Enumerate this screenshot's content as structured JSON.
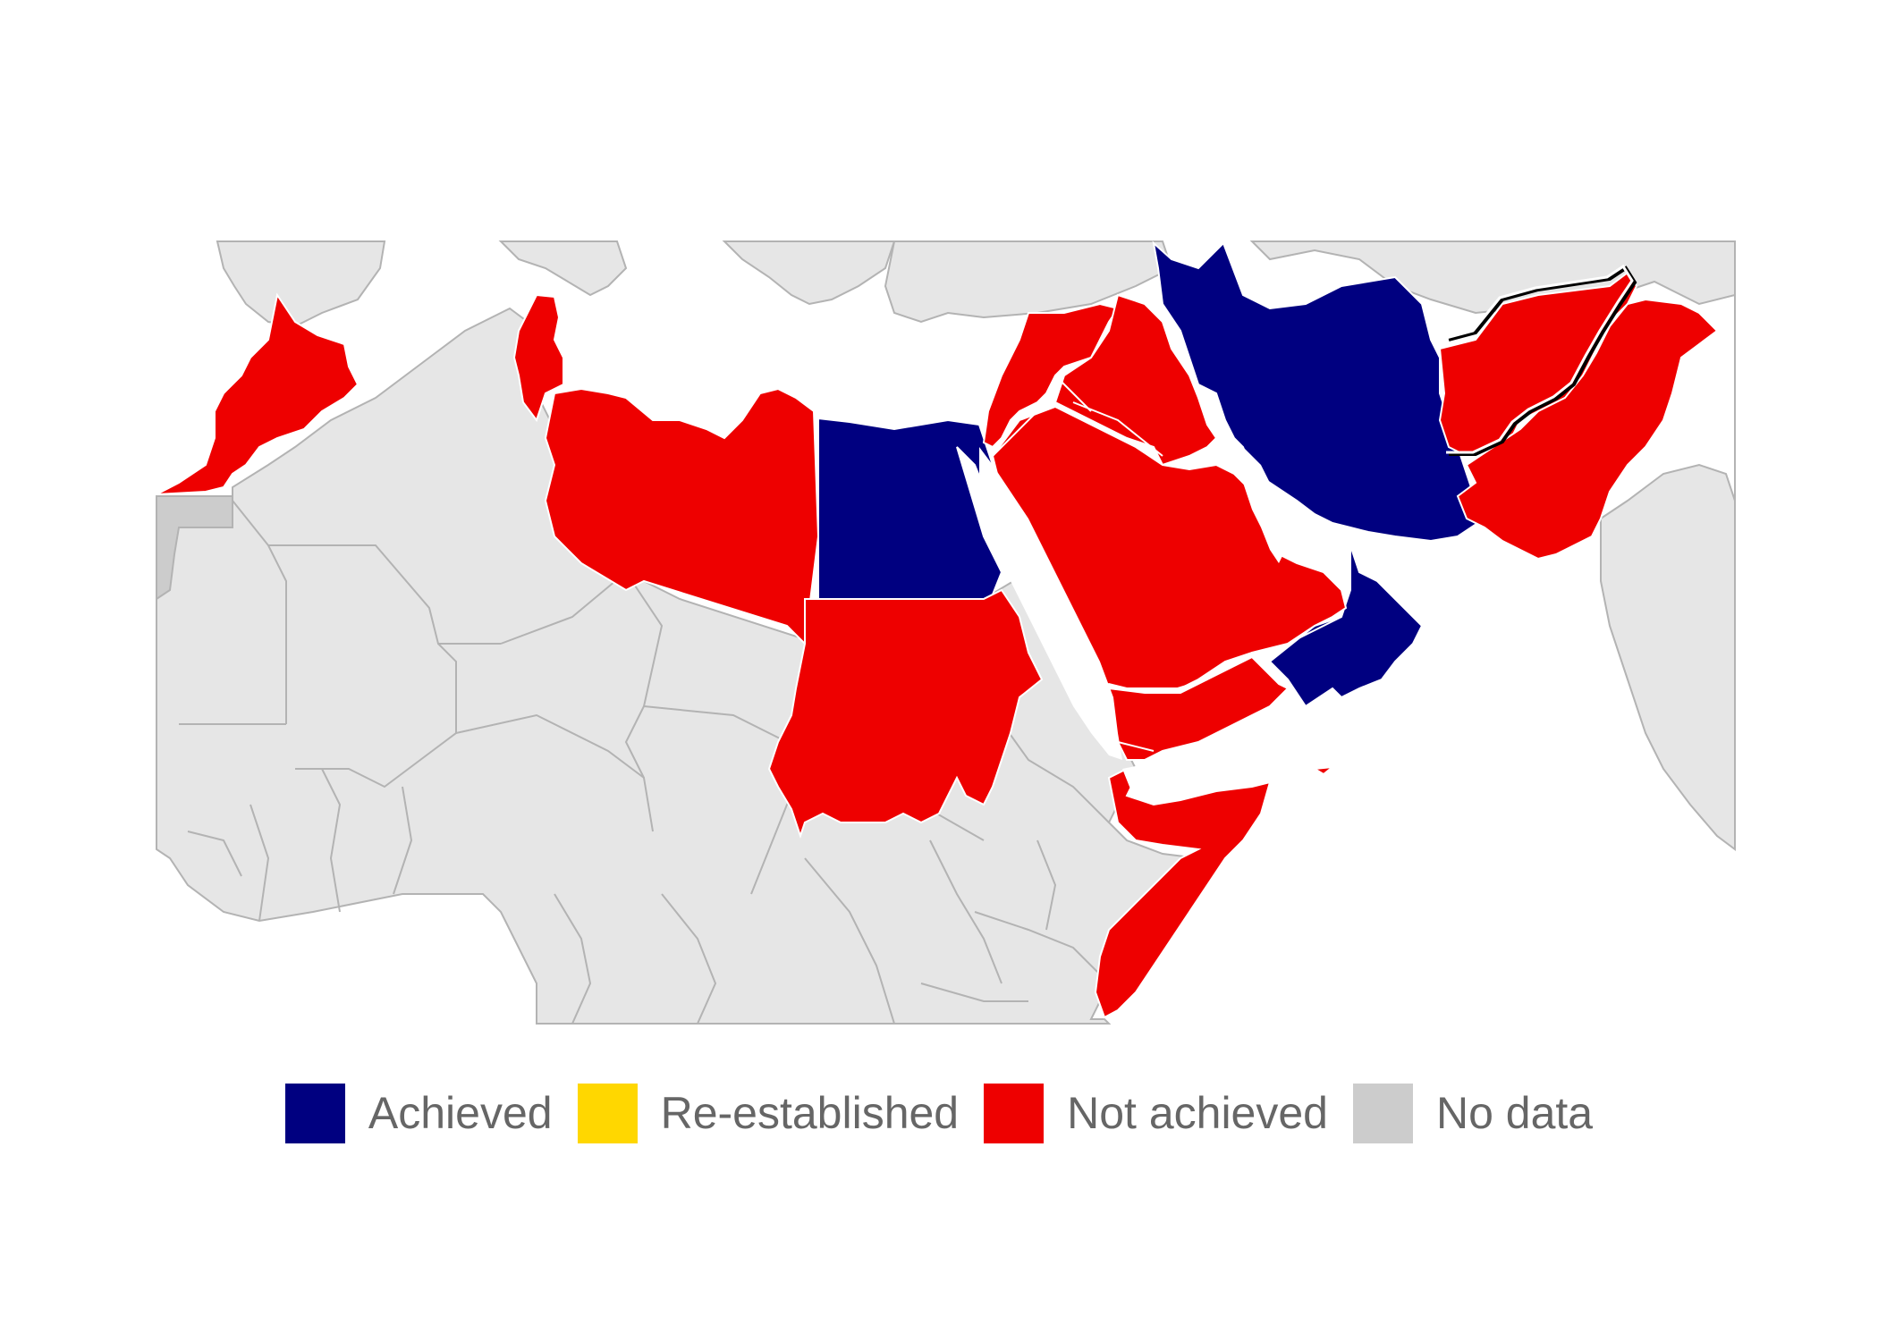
{
  "colors": {
    "achieved": "#000080",
    "re_established": "#ffd700",
    "not_achieved": "#ee0000",
    "no_data": "#cccccc",
    "background_land": "#e6e6e6",
    "border": "#b3b3b3",
    "sea": "#ffffff"
  },
  "legend": {
    "items": [
      {
        "label": "Achieved",
        "color": "#000080"
      },
      {
        "label": "Re-established",
        "color": "#ffd700"
      },
      {
        "label": "Not achieved",
        "color": "#ee0000"
      },
      {
        "label": "No data",
        "color": "#cccccc"
      }
    ]
  }
}
